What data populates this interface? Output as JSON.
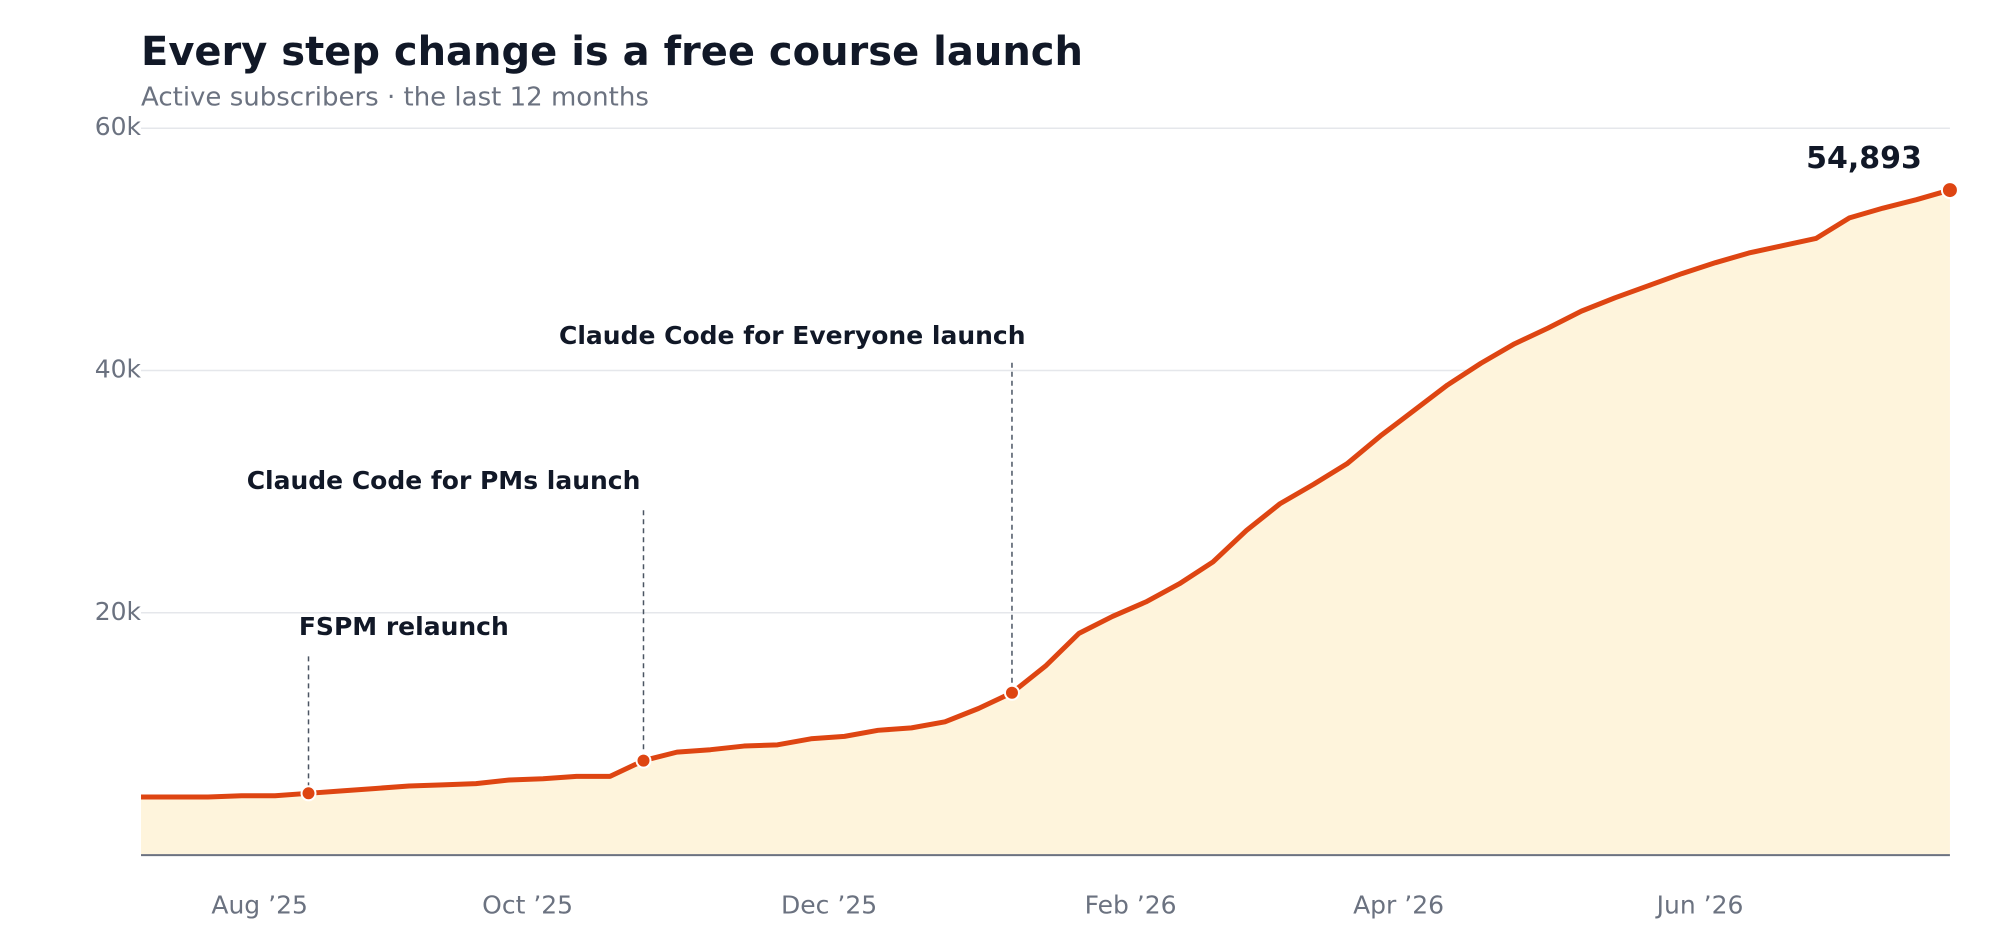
{
  "chart_data": {
    "type": "area",
    "title": "Every step change is a free course launch",
    "subtitle": "Active subscribers · the last 12 months",
    "categories": [
      null,
      null,
      null,
      null,
      "Aug ’25",
      null,
      null,
      null,
      null,
      null,
      null,
      null,
      "Oct ’25",
      null,
      null,
      null,
      null,
      null,
      null,
      null,
      null,
      "Dec ’25",
      null,
      null,
      null,
      null,
      null,
      null,
      null,
      null,
      "Feb ’26",
      null,
      null,
      null,
      null,
      null,
      null,
      null,
      "Apr ’26",
      null,
      null,
      null,
      null,
      null,
      null,
      null,
      null,
      "Jun ’26",
      null,
      null,
      null,
      null,
      null,
      null,
      null
    ],
    "values": [
      4800,
      4800,
      4800,
      4900,
      4900,
      5100,
      5300,
      5500,
      5700,
      5800,
      5900,
      6200,
      6300,
      6500,
      6500,
      7800,
      8500,
      8700,
      9000,
      9100,
      9600,
      9800,
      10300,
      10500,
      11000,
      12100,
      13400,
      15600,
      18300,
      19700,
      20900,
      22400,
      24200,
      26800,
      29000,
      30600,
      32300,
      34600,
      36700,
      38800,
      40600,
      42200,
      43500,
      44900,
      46000,
      47000,
      48000,
      48900,
      49700,
      50300,
      50900,
      52600,
      53400,
      54100,
      54893
    ],
    "value_labels": [
      null,
      null,
      null,
      null,
      null,
      null,
      null,
      null,
      null,
      null,
      null,
      null,
      null,
      null,
      null,
      null,
      null,
      null,
      null,
      null,
      null,
      null,
      null,
      null,
      null,
      null,
      null,
      null,
      null,
      null,
      null,
      null,
      null,
      null,
      null,
      null,
      null,
      null,
      null,
      null,
      null,
      null,
      null,
      null,
      null,
      null,
      null,
      null,
      null,
      null,
      null,
      null,
      null,
      null,
      "54,893"
    ],
    "color": "#de4512",
    "fill": "#fef4dc",
    "ylim": [
      0,
      60000
    ],
    "yticks": [
      {
        "value": 20000,
        "label": "20k"
      },
      {
        "value": 40000,
        "label": "40k"
      },
      {
        "value": 60000,
        "label": "60k"
      }
    ],
    "grid": true,
    "annotations": [
      {
        "text": "FSPM relaunch",
        "index": 5
      },
      {
        "text": "Claude Code for PMs launch",
        "index": 15
      },
      {
        "text": "Claude Code for Everyone launch",
        "index": 26
      }
    ]
  }
}
